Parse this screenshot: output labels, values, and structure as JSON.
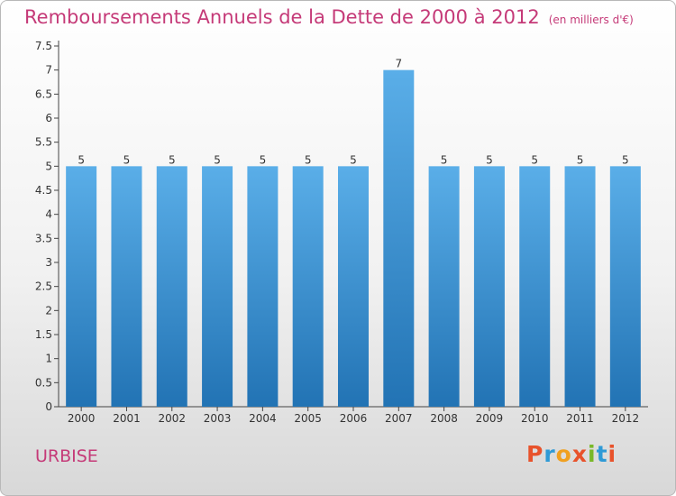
{
  "header": {
    "title": "Remboursements Annuels de la Dette de 2000 à 2012",
    "unit": "(en milliers d'€)"
  },
  "footer": {
    "commune": "URBISE",
    "logo": {
      "text": "Proxiti",
      "colors": [
        "#e8522b",
        "#2f9ad6",
        "#f0a020",
        "#e8522b",
        "#79b828",
        "#2f9ad6",
        "#e8522b"
      ]
    }
  },
  "colors": {
    "title": "#c53a78",
    "bar_top": "#5aaee8",
    "bar_bottom": "#2273b4"
  },
  "chart_data": {
    "type": "bar",
    "title": "Remboursements Annuels de la Dette de 2000 à 2012",
    "xlabel": "",
    "ylabel": "",
    "categories": [
      "2000",
      "2001",
      "2002",
      "2003",
      "2004",
      "2005",
      "2006",
      "2007",
      "2008",
      "2009",
      "2010",
      "2011",
      "2012"
    ],
    "values": [
      5,
      5,
      5,
      5,
      5,
      5,
      5,
      7,
      5,
      5,
      5,
      5,
      5
    ],
    "data_labels": [
      "5",
      "5",
      "5",
      "5",
      "5",
      "5",
      "5",
      "7",
      "5",
      "5",
      "5",
      "5",
      "5"
    ],
    "ylim": [
      0,
      7.5
    ],
    "yticks": [
      "0",
      "0.5",
      "1",
      "1.5",
      "2",
      "2.5",
      "3",
      "3.5",
      "4",
      "4.5",
      "5",
      "5.5",
      "6",
      "6.5",
      "7",
      "7.5"
    ],
    "grid": false,
    "legend": "none"
  }
}
